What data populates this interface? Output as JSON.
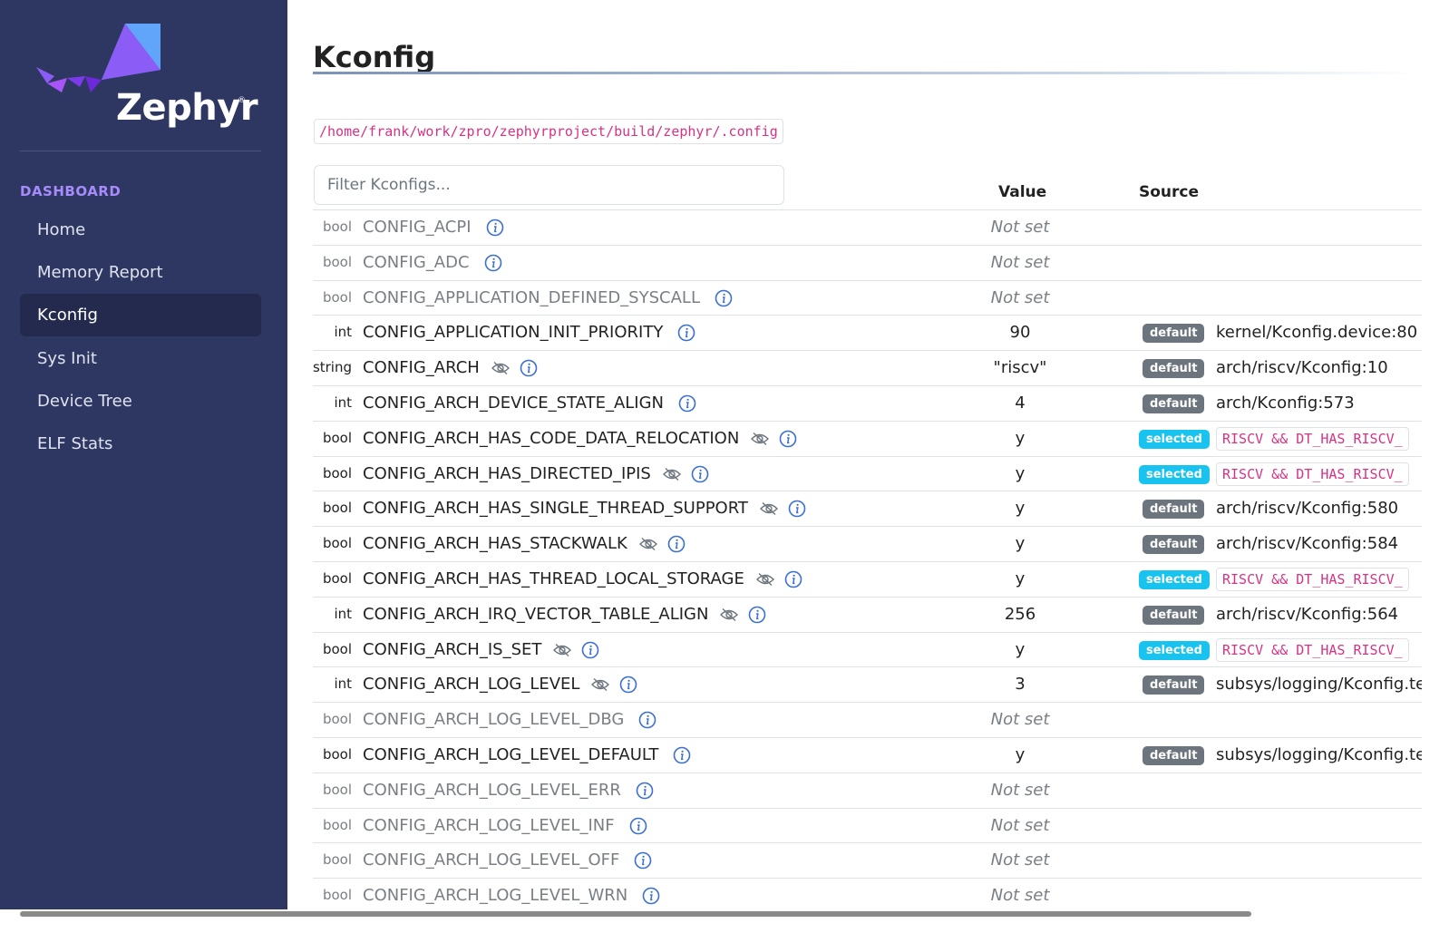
{
  "sidebar": {
    "logo": "Zephyr",
    "logo_mark": "®",
    "section": "DASHBOARD",
    "nav": [
      "Home",
      "Memory Report",
      "Kconfig",
      "Sys Init",
      "Device Tree",
      "ELF Stats"
    ],
    "active": 2
  },
  "main": {
    "title": "Kconfig",
    "path": "/home/frank/work/zpro/zephyrproject/build/zephyr/.config",
    "filter_placeholder": "Filter Kconfigs...",
    "table": {
      "headers": [
        "Value",
        "Source"
      ],
      "rows": [
        {
          "type": "bool",
          "name": "CONFIG_ACPI",
          "value": "Not set",
          "set": false
        },
        {
          "type": "bool",
          "name": "CONFIG_ADC",
          "value": "Not set",
          "set": false
        },
        {
          "type": "bool",
          "name": "CONFIG_APPLICATION_DEFINED_SYSCALL",
          "value": "Not set",
          "set": false
        },
        {
          "type": "int",
          "name": "CONFIG_APPLICATION_INIT_PRIORITY",
          "value": "90",
          "set": true,
          "badge": "default",
          "source": "kernel/Kconfig.device:80"
        },
        {
          "type": "string",
          "name": "CONFIG_ARCH",
          "hidden": true,
          "value": "\"riscv\"",
          "set": true,
          "badge": "default",
          "source": "arch/riscv/Kconfig:10"
        },
        {
          "type": "int",
          "name": "CONFIG_ARCH_DEVICE_STATE_ALIGN",
          "value": "4",
          "set": true,
          "badge": "default",
          "source": "arch/Kconfig:573"
        },
        {
          "type": "bool",
          "name": "CONFIG_ARCH_HAS_CODE_DATA_RELOCATION",
          "hidden": true,
          "value": "y",
          "set": true,
          "badge": "selected",
          "condition": "RISCV && DT_HAS_RISCV_"
        },
        {
          "type": "bool",
          "name": "CONFIG_ARCH_HAS_DIRECTED_IPIS",
          "hidden": true,
          "value": "y",
          "set": true,
          "badge": "selected",
          "condition": "RISCV && DT_HAS_RISCV_"
        },
        {
          "type": "bool",
          "name": "CONFIG_ARCH_HAS_SINGLE_THREAD_SUPPORT",
          "hidden": true,
          "value": "y",
          "set": true,
          "badge": "default",
          "source": "arch/riscv/Kconfig:580"
        },
        {
          "type": "bool",
          "name": "CONFIG_ARCH_HAS_STACKWALK",
          "hidden": true,
          "value": "y",
          "set": true,
          "badge": "default",
          "source": "arch/riscv/Kconfig:584"
        },
        {
          "type": "bool",
          "name": "CONFIG_ARCH_HAS_THREAD_LOCAL_STORAGE",
          "hidden": true,
          "value": "y",
          "set": true,
          "badge": "selected",
          "condition": "RISCV && DT_HAS_RISCV_"
        },
        {
          "type": "int",
          "name": "CONFIG_ARCH_IRQ_VECTOR_TABLE_ALIGN",
          "hidden": true,
          "value": "256",
          "set": true,
          "badge": "default",
          "source": "arch/riscv/Kconfig:564"
        },
        {
          "type": "bool",
          "name": "CONFIG_ARCH_IS_SET",
          "hidden": true,
          "value": "y",
          "set": true,
          "badge": "selected",
          "condition": "RISCV && DT_HAS_RISCV_"
        },
        {
          "type": "int",
          "name": "CONFIG_ARCH_LOG_LEVEL",
          "hidden": true,
          "value": "3",
          "set": true,
          "badge": "default",
          "source": "subsys/logging/Kconfig.ter"
        },
        {
          "type": "bool",
          "name": "CONFIG_ARCH_LOG_LEVEL_DBG",
          "value": "Not set",
          "set": false
        },
        {
          "type": "bool",
          "name": "CONFIG_ARCH_LOG_LEVEL_DEFAULT",
          "value": "y",
          "set": true,
          "badge": "default",
          "source": "subsys/logging/Kconfig.ter"
        },
        {
          "type": "bool",
          "name": "CONFIG_ARCH_LOG_LEVEL_ERR",
          "value": "Not set",
          "set": false
        },
        {
          "type": "bool",
          "name": "CONFIG_ARCH_LOG_LEVEL_INF",
          "value": "Not set",
          "set": false
        },
        {
          "type": "bool",
          "name": "CONFIG_ARCH_LOG_LEVEL_OFF",
          "value": "Not set",
          "set": false
        },
        {
          "type": "bool",
          "name": "CONFIG_ARCH_LOG_LEVEL_WRN",
          "value": "Not set",
          "set": false
        }
      ]
    }
  }
}
